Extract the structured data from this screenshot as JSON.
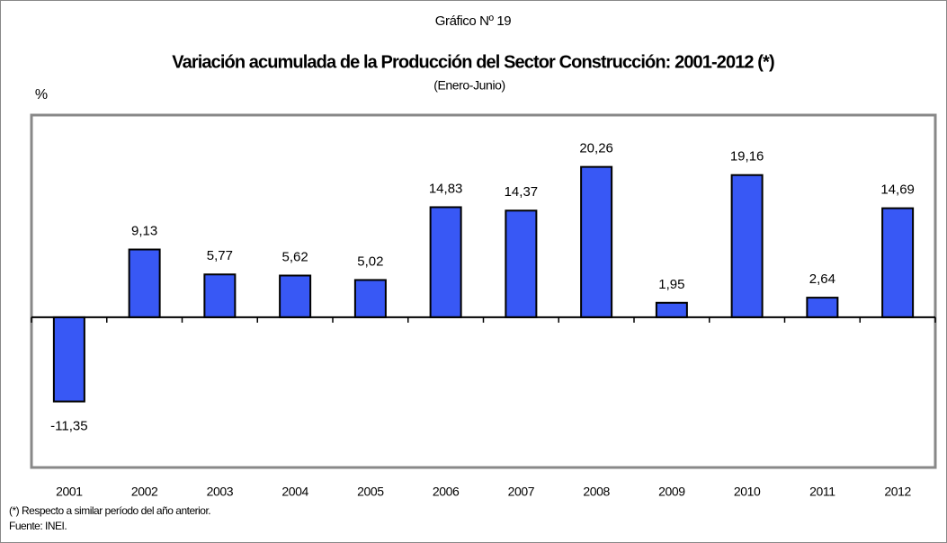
{
  "chart_data": {
    "type": "bar",
    "kicker": "Gráfico Nº 19",
    "title": "Variación acumulada de la Producción del Sector Construcción: 2001-2012 (*)",
    "subtitle": "(Enero-Junio)",
    "y_label": "%",
    "categories": [
      "2001",
      "2002",
      "2003",
      "2004",
      "2005",
      "2006",
      "2007",
      "2008",
      "2009",
      "2010",
      "2011",
      "2012"
    ],
    "values": [
      -11.35,
      9.13,
      5.77,
      5.62,
      5.02,
      14.83,
      14.37,
      20.26,
      1.95,
      19.16,
      2.64,
      14.69
    ],
    "value_labels": [
      "-11,35",
      "9,13",
      "5,77",
      "5,62",
      "5,02",
      "14,83",
      "14,37",
      "20,26",
      "1,95",
      "19,16",
      "2,64",
      "14,69"
    ],
    "color": "#3858f5",
    "ylim": [
      -20,
      27
    ],
    "notes": [
      "(*) Respecto a similar período del año anterior.",
      "Fuente: INEI."
    ]
  }
}
